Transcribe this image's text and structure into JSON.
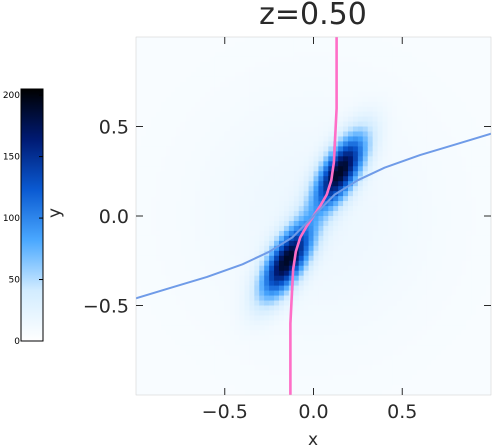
{
  "chart_data": {
    "type": "heatmap",
    "title": "z=0.50",
    "xlabel": "x",
    "ylabel": "y",
    "xlim": [
      -1.0,
      1.0
    ],
    "ylim": [
      -1.0,
      1.0
    ],
    "x_ticks": [
      {
        "value": -0.5,
        "label": "−0.5"
      },
      {
        "value": 0.0,
        "label": "0.0"
      },
      {
        "value": 0.5,
        "label": "0.5"
      }
    ],
    "y_ticks": [
      {
        "value": -0.5,
        "label": "−0.5"
      },
      {
        "value": 0.0,
        "label": "0.0"
      },
      {
        "value": 0.5,
        "label": "0.5"
      }
    ],
    "colorbar": {
      "range": [
        0,
        205
      ],
      "ticks": [
        {
          "value": 0,
          "label": "0"
        },
        {
          "value": 50,
          "label": "50"
        },
        {
          "value": 100,
          "label": "100"
        },
        {
          "value": 150,
          "label": "150"
        },
        {
          "value": 200,
          "label": "200"
        }
      ],
      "colors": [
        "#ffffff",
        "#d2ecff",
        "#4aa8ff",
        "#0a5ad2",
        "#001a73",
        "#000000"
      ]
    },
    "density_peaks": [
      {
        "x": 0.15,
        "y": 0.25,
        "value": 200
      },
      {
        "x": -0.15,
        "y": -0.25,
        "value": 200
      }
    ],
    "series": [
      {
        "color": "#ff6ec7",
        "x": [
          -0.13,
          -0.13,
          -0.12,
          -0.115,
          -0.1,
          -0.075,
          -0.04,
          0.0,
          0.04,
          0.075,
          0.1,
          0.115,
          0.12,
          0.13,
          0.13
        ],
        "y": [
          -1.0,
          -0.6,
          -0.4,
          -0.3,
          -0.2,
          -0.12,
          -0.06,
          0.0,
          0.06,
          0.12,
          0.2,
          0.3,
          0.4,
          0.6,
          1.0
        ]
      },
      {
        "color": "#6f9be8",
        "x": [
          -1.0,
          -0.8,
          -0.6,
          -0.4,
          -0.25,
          -0.12,
          0.0,
          0.12,
          0.25,
          0.4,
          0.6,
          0.8,
          1.0
        ],
        "y": [
          -0.46,
          -0.4,
          -0.34,
          -0.27,
          -0.2,
          -0.12,
          0.0,
          0.12,
          0.2,
          0.27,
          0.34,
          0.4,
          0.46
        ]
      }
    ]
  }
}
